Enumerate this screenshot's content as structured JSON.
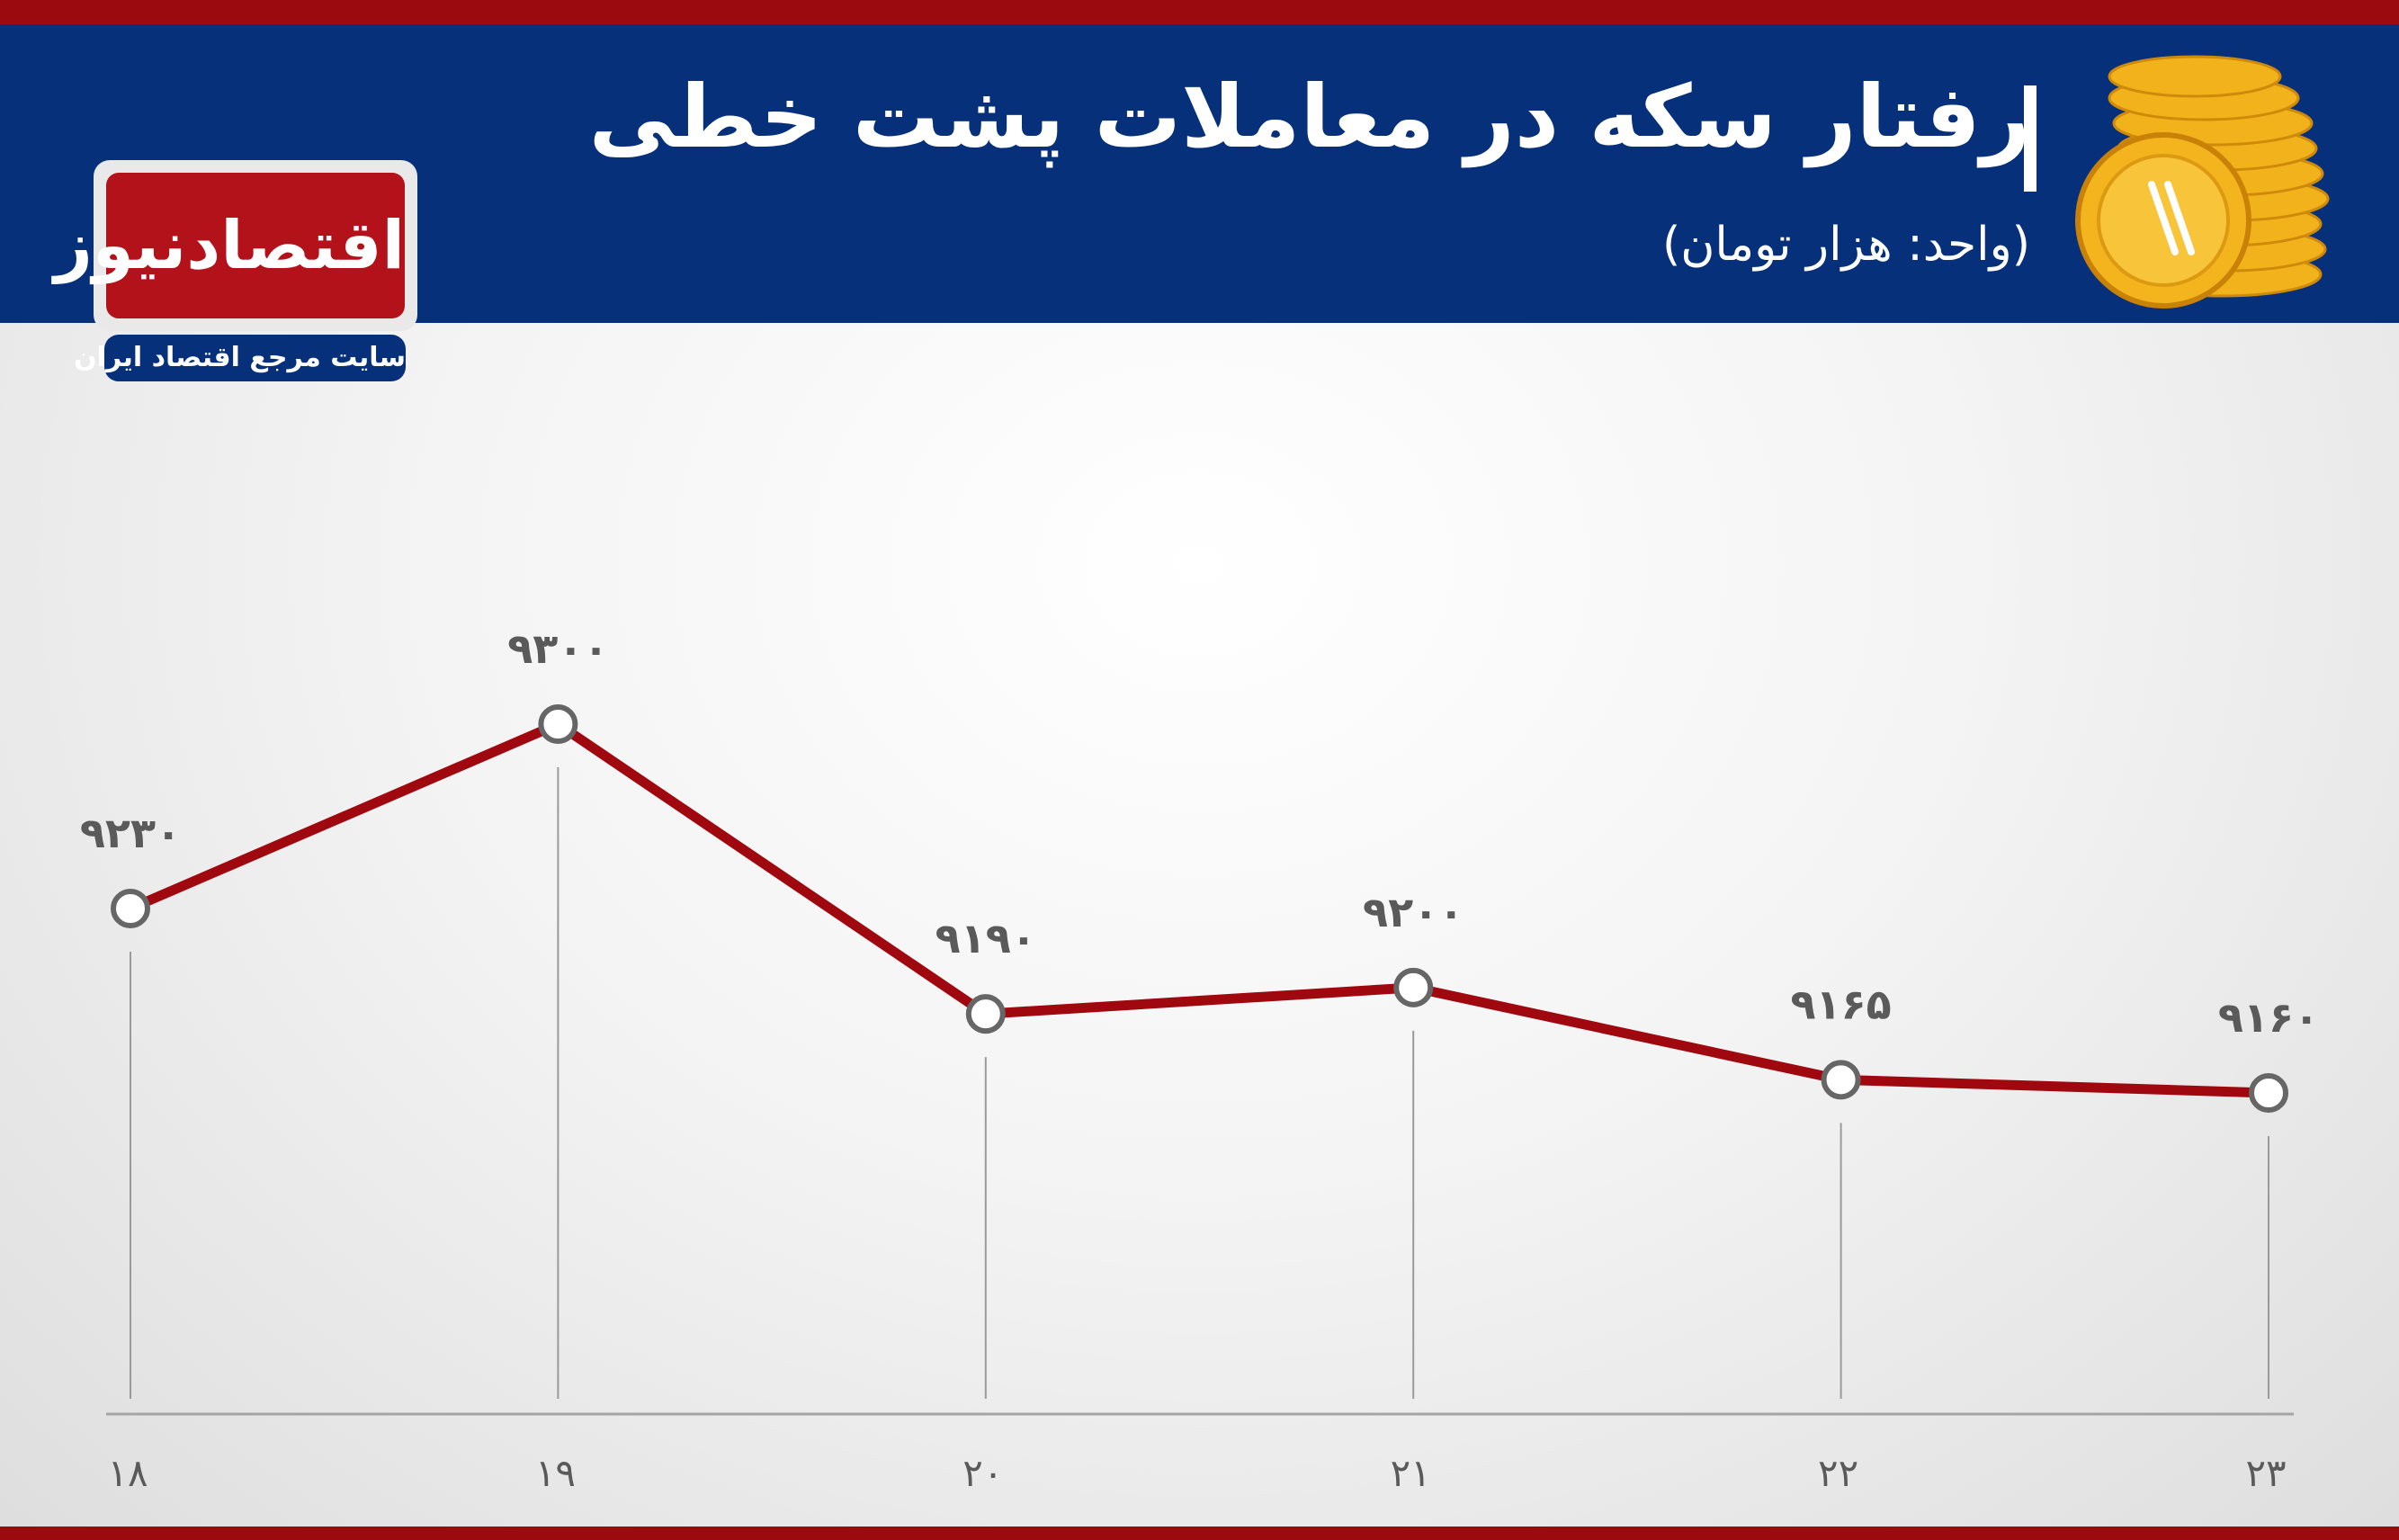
{
  "header": {
    "title": "رفتار سکه در معاملات پشت خطی",
    "subtitle": "(واحد: هزار تومان)"
  },
  "logo": {
    "name": "اقتصادنیوز",
    "tagline": "سایت مرجع اقتصاد ایران"
  },
  "colors": {
    "header_bg": "#06307a",
    "accent_red": "#9b0a0f",
    "line": "#a0080f",
    "coin": "#f2b21b"
  },
  "icons": [
    "gold-coins-icon"
  ],
  "chart_data": {
    "type": "line",
    "categories": [
      "۱۸",
      "۱۹",
      "۲۰",
      "۲۱",
      "۲۲",
      "۲۳"
    ],
    "x": [
      18,
      19,
      20,
      21,
      22,
      23
    ],
    "values": [
      9230,
      9300,
      9190,
      9200,
      9165,
      9160
    ],
    "value_labels": [
      "۹۲۳۰",
      "۹۳۰۰",
      "۹۱۹۰",
      "۹۲۰۰",
      "۹۱۶۵",
      "۹۱۶۰"
    ],
    "title": "رفتار سکه در معاملات پشت خطی",
    "subtitle": "(واحد: هزار تومان)",
    "xlabel": "",
    "ylabel": "",
    "ylim": [
      9000,
      9400
    ],
    "grid": false,
    "legend": "none"
  }
}
